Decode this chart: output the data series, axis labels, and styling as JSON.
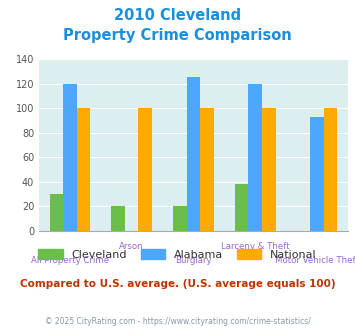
{
  "title_line1": "2010 Cleveland",
  "title_line2": "Property Crime Comparison",
  "categories": [
    "All Property Crime",
    "Arson",
    "Burglary",
    "Larceny & Theft",
    "Motor Vehicle Theft"
  ],
  "cleveland": [
    30,
    20,
    20,
    38,
    null
  ],
  "alabama": [
    120,
    null,
    126,
    120,
    93
  ],
  "national": [
    100,
    100,
    100,
    100,
    100
  ],
  "cleveland_color": "#6abf4b",
  "alabama_color": "#4da6ff",
  "national_color": "#ffaa00",
  "title_color": "#1a8fdd",
  "xlabel_color": "#9966cc",
  "ylabel_color": "#555555",
  "bg_color": "#ddeef0",
  "note_text": "Compared to U.S. average. (U.S. average equals 100)",
  "note_color": "#bb3300",
  "footer_text": "© 2025 CityRating.com - https://www.cityrating.com/crime-statistics/",
  "footer_color": "#8899aa",
  "ylim": [
    0,
    140
  ],
  "yticks": [
    0,
    20,
    40,
    60,
    80,
    100,
    120,
    140
  ],
  "bar_width": 0.22,
  "legend_labels": [
    "Cleveland",
    "Alabama",
    "National"
  ]
}
